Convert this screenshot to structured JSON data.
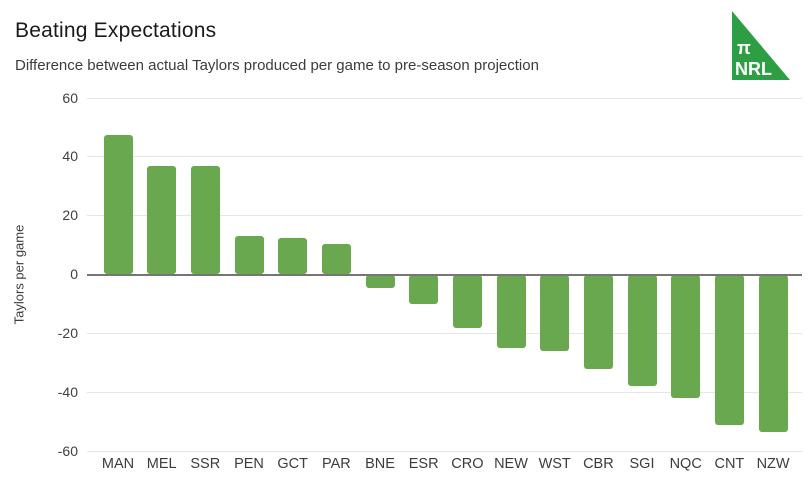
{
  "header": {
    "title": "Beating Expectations",
    "subtitle": "Difference between actual Taylors produced per game to pre-season projection"
  },
  "logo": {
    "pi_text": "π",
    "nrl_text": "NRL",
    "triangle_color": "#2e9e44",
    "text_color": "#ffffff"
  },
  "chart_data": {
    "type": "bar",
    "title": "Beating Expectations",
    "subtitle": "Difference between actual Taylors produced per game to pre-season projection",
    "categories": [
      "MAN",
      "MEL",
      "SSR",
      "PEN",
      "GCT",
      "PAR",
      "BNE",
      "ESR",
      "CRO",
      "NEW",
      "WST",
      "CBR",
      "SGI",
      "NQC",
      "CNT",
      "NZW"
    ],
    "values": [
      47.5,
      37,
      37,
      13,
      12.5,
      10.5,
      -4.5,
      -10,
      -18,
      -25,
      -26,
      -32,
      -38,
      -42,
      -51,
      -53.5
    ],
    "xlabel": "",
    "ylabel": "Taylors per game",
    "ylim": [
      -60,
      60
    ],
    "yticks": [
      60,
      40,
      20,
      0,
      -20,
      -40,
      -60
    ],
    "grid": true,
    "legend": "none",
    "bar_color": "#6aa84f",
    "gridline_color": "#e6e6e6",
    "zero_line_color": "#757575"
  }
}
